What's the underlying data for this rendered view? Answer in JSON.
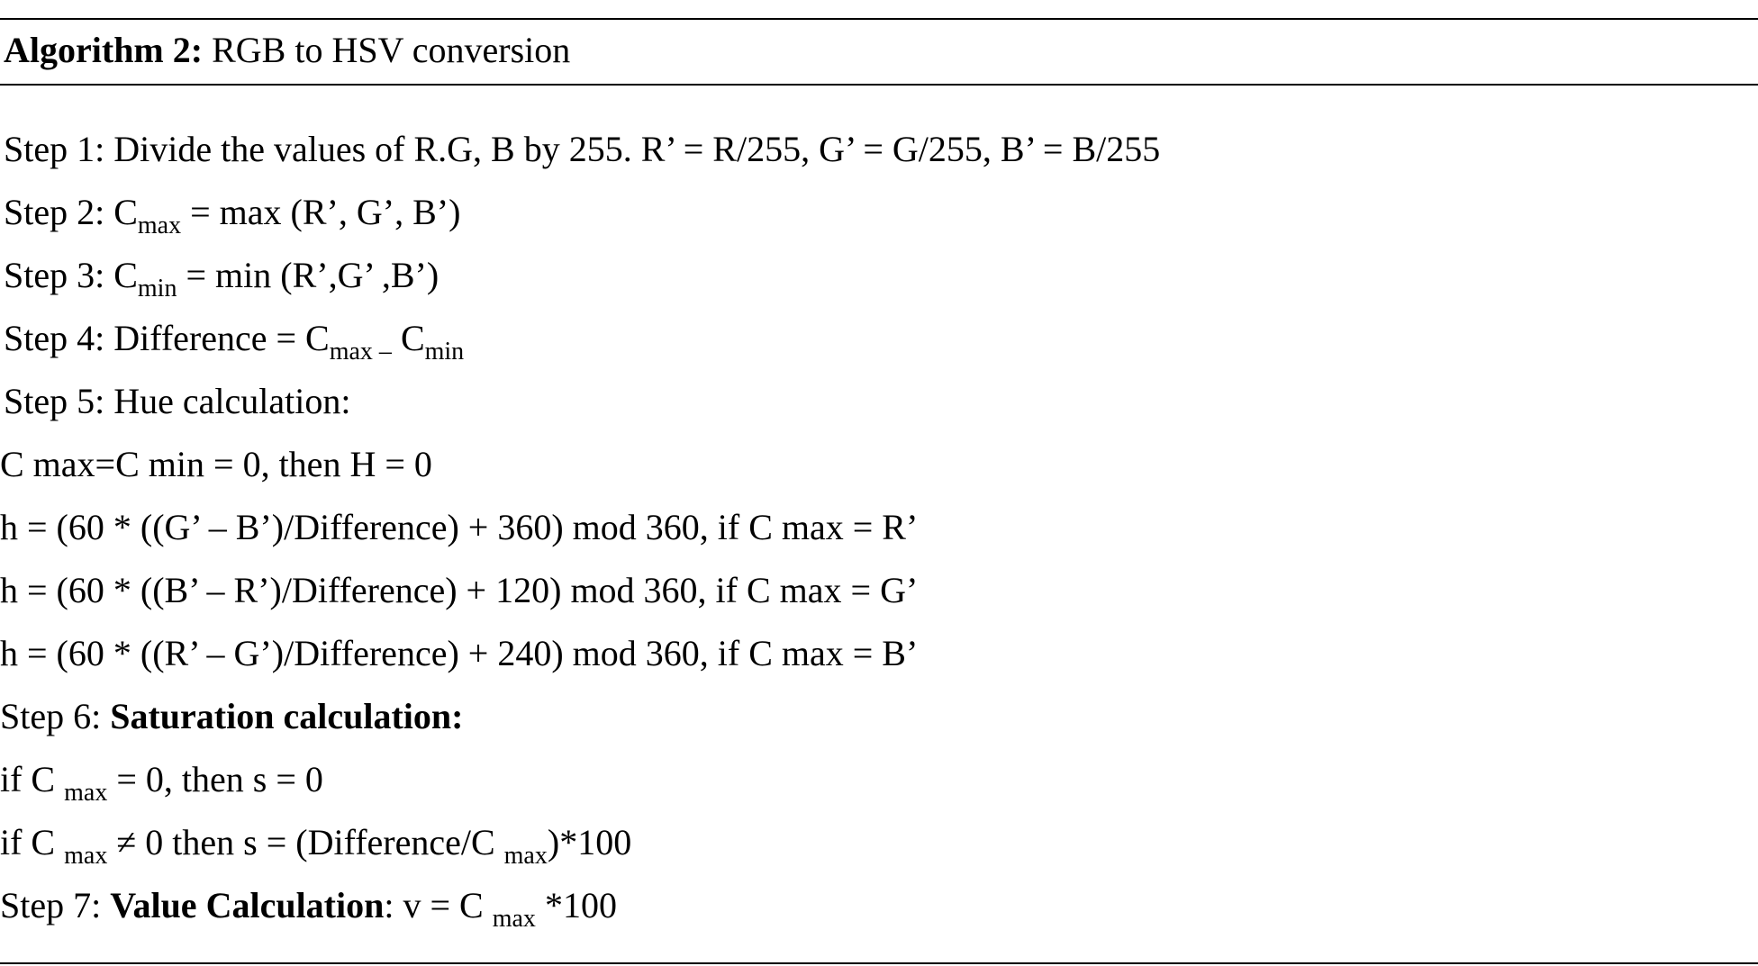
{
  "algorithm": {
    "label": "Algorithm 2:",
    "title": "RGB to HSV conversion"
  },
  "steps": {
    "s1": "Step 1: Divide the values of R.G, B by 255. R’ = R/255, G’ = G/255, B’ = B/255",
    "s2_pre": "Step 2: C",
    "s2_sub": "max",
    "s2_post": " = max (R’, G’, B’)",
    "s3_pre": "Step 3: C",
    "s3_sub": "min",
    "s3_post": " = min (R’,G’ ,B’)",
    "s4_pre": "Step 4: Difference = C",
    "s4_sub1": "max –",
    "s4_mid": " C",
    "s4_sub2": "min",
    "s5": "Step 5: Hue calculation:",
    "h0": "C max=C min = 0, then H = 0",
    "h1": "h = (60 * ((G’ – B’)/Difference) + 360) mod 360, if C max = R’",
    "h2": "h = (60 * ((B’ – R’)/Difference) + 120) mod 360, if C max = G’",
    "h3": "h = (60 * ((R’ – G’)/Difference) + 240) mod 360, if C max = B’",
    "s6_pre": "Step 6: ",
    "s6_bold": "Saturation calculation:",
    "sat1_pre": "if C ",
    "sat1_sub": "max",
    "sat1_post": " = 0, then s = 0",
    "sat2_pre": "if C ",
    "sat2_sub": "max",
    "sat2_mid": "  ≠ 0 then s = (Difference/C ",
    "sat2_sub2": "max",
    "sat2_post": ")*100",
    "s7_pre": "Step 7: ",
    "s7_bold": "Value Calculation",
    "s7_mid": ": v = C ",
    "s7_sub": "max",
    "s7_post": " *100"
  }
}
